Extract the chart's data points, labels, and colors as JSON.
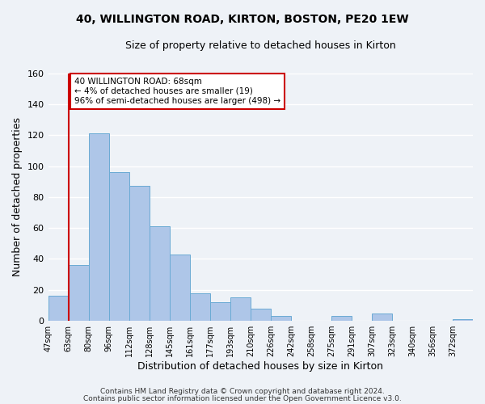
{
  "title": "40, WILLINGTON ROAD, KIRTON, BOSTON, PE20 1EW",
  "subtitle": "Size of property relative to detached houses in Kirton",
  "xlabel": "Distribution of detached houses by size in Kirton",
  "ylabel": "Number of detached properties",
  "bin_labels": [
    "47sqm",
    "63sqm",
    "80sqm",
    "96sqm",
    "112sqm",
    "128sqm",
    "145sqm",
    "161sqm",
    "177sqm",
    "193sqm",
    "210sqm",
    "226sqm",
    "242sqm",
    "258sqm",
    "275sqm",
    "291sqm",
    "307sqm",
    "323sqm",
    "340sqm",
    "356sqm",
    "372sqm"
  ],
  "bar_heights": [
    16,
    36,
    121,
    96,
    87,
    61,
    43,
    18,
    12,
    15,
    8,
    3,
    0,
    0,
    3,
    0,
    5,
    0,
    0,
    0,
    1
  ],
  "bar_color": "#aec6e8",
  "bar_edge_color": "#6aaad4",
  "vline_x": 1.0,
  "vline_color": "#cc0000",
  "annotation_title": "40 WILLINGTON ROAD: 68sqm",
  "annotation_line1": "← 4% of detached houses are smaller (19)",
  "annotation_line2": "96% of semi-detached houses are larger (498) →",
  "annotation_box_color": "#ffffff",
  "annotation_box_edge": "#cc0000",
  "ylim": [
    0,
    160
  ],
  "yticks": [
    0,
    20,
    40,
    60,
    80,
    100,
    120,
    140,
    160
  ],
  "footer1": "Contains HM Land Registry data © Crown copyright and database right 2024.",
  "footer2": "Contains public sector information licensed under the Open Government Licence v3.0.",
  "background_color": "#eef2f7",
  "grid_color": "#ffffff"
}
